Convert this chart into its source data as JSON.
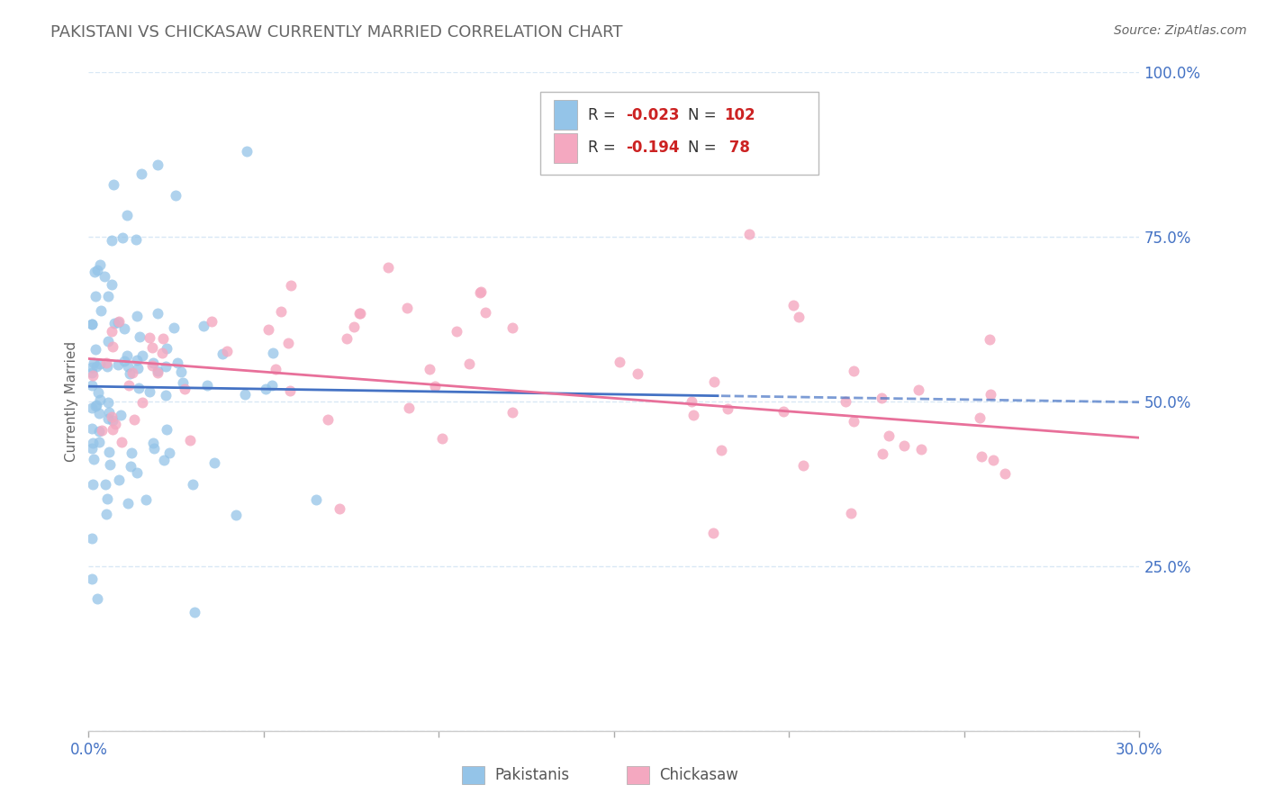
{
  "title": "PAKISTANI VS CHICKASAW CURRENTLY MARRIED CORRELATION CHART",
  "source": "Source: ZipAtlas.com",
  "xlabel_pakistanis": "Pakistanis",
  "xlabel_chickasaw": "Chickasaw",
  "ylabel_label": "Currently Married",
  "xlim": [
    0.0,
    0.3
  ],
  "ylim": [
    0.0,
    1.0
  ],
  "xticks": [
    0.0,
    0.05,
    0.1,
    0.15,
    0.2,
    0.25,
    0.3
  ],
  "yticks": [
    0.0,
    0.25,
    0.5,
    0.75,
    1.0
  ],
  "ytick_labels": [
    "",
    "25.0%",
    "50.0%",
    "75.0%",
    "100.0%"
  ],
  "blue_color": "#94C4E8",
  "pink_color": "#F4A8C0",
  "blue_line_color": "#4472C4",
  "pink_line_color": "#E8709A",
  "axis_color": "#4472C4",
  "grid_color": "#D9E8F5",
  "title_color": "#666666",
  "source_color": "#666666",
  "ylabel_color": "#666666",
  "R1": -0.023,
  "N1": 102,
  "R2": -0.194,
  "N2": 78,
  "legend_text_color": "#333333",
  "legend_num_color": "#CC2222"
}
